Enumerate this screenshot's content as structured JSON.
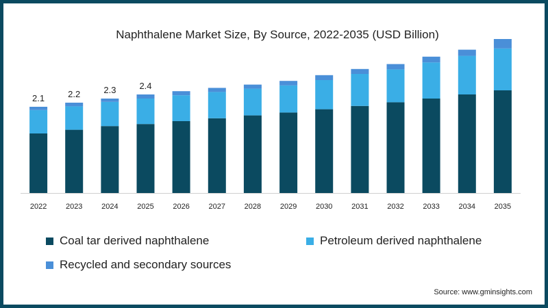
{
  "chart_data": {
    "type": "bar",
    "stacked": true,
    "title": "Naphthalene Market Size, By Source, 2022-2035 (USD Billion)",
    "categories": [
      "2022",
      "2023",
      "2024",
      "2025",
      "2026",
      "2027",
      "2028",
      "2029",
      "2030",
      "2031",
      "2032",
      "2033",
      "2034",
      "2035"
    ],
    "series": [
      {
        "name": "Coal tar derived naphthalene",
        "color": "#0b4a60",
        "values": [
          1.45,
          1.54,
          1.63,
          1.68,
          1.75,
          1.82,
          1.89,
          1.96,
          2.04,
          2.12,
          2.21,
          2.3,
          2.4,
          2.5
        ]
      },
      {
        "name": "Petroleum derived naphthalene",
        "color": "#3aaee6",
        "values": [
          0.57,
          0.57,
          0.59,
          0.62,
          0.63,
          0.64,
          0.65,
          0.66,
          0.71,
          0.78,
          0.8,
          0.88,
          0.94,
          1.02
        ]
      },
      {
        "name": "Recycled and secondary sources",
        "color": "#4a8fd8",
        "values": [
          0.08,
          0.09,
          0.08,
          0.1,
          0.1,
          0.1,
          0.1,
          0.11,
          0.12,
          0.12,
          0.13,
          0.14,
          0.15,
          0.23
        ]
      }
    ],
    "data_labels": [
      "2.1",
      "2.2",
      "2.3",
      "2.4",
      "",
      "",
      "",
      "",
      "",
      "",
      "",
      "",
      "",
      ""
    ],
    "xlabel": "",
    "ylabel": "",
    "ylim": [
      0,
      3.9
    ],
    "grid": false,
    "legend_position": "bottom"
  },
  "footer": {
    "source": "Source: www.gminsights.com"
  }
}
